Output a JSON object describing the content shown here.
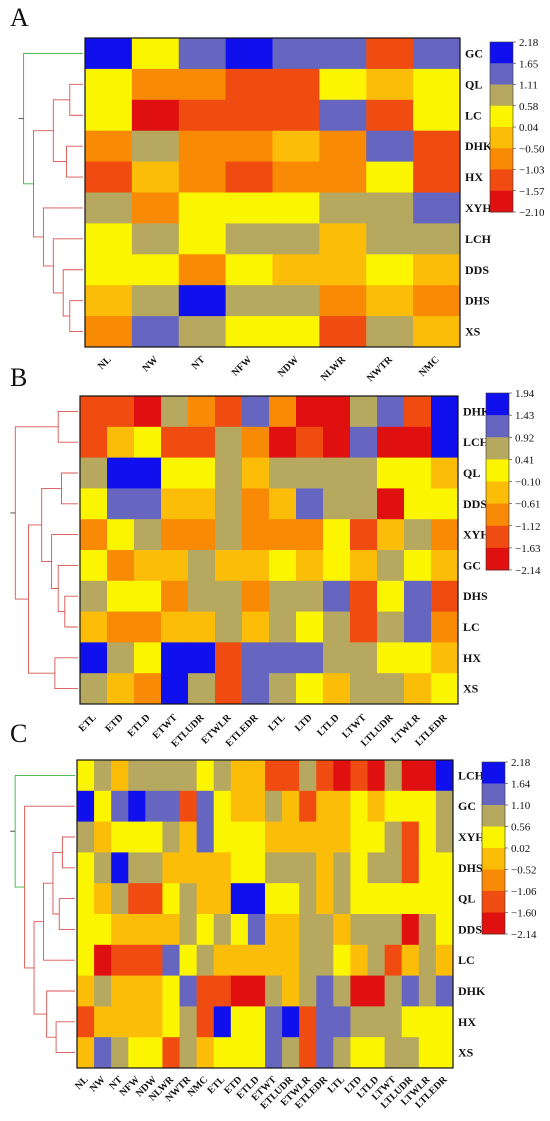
{
  "colorscale": [
    "#e01010",
    "#f04b10",
    "#f98a06",
    "#fbbd08",
    "#fbf500",
    "#b6a95f",
    "#6666c0",
    "#1010ee"
  ],
  "chart_data": [
    {
      "type": "heatmap",
      "panel_label": "A",
      "rows": [
        "GC",
        "QL",
        "LC",
        "DHK",
        "HX",
        "XYH",
        "LCH",
        "DDS",
        "DHS",
        "XS"
      ],
      "columns": [
        "NL",
        "NW",
        "NT",
        "NFW",
        "NDW",
        "NLWR",
        "NWTR",
        "NMC"
      ],
      "colorbar_ticks": [
        "2.18",
        "1.65",
        "1.11",
        "0.58",
        "0.04",
        "−0.50",
        "−1.03",
        "−1.57",
        "−2.10"
      ],
      "value_range": [
        -2.1,
        2.18
      ],
      "values": [
        [
          2.0,
          0.1,
          1.3,
          2.0,
          1.3,
          1.3,
          -1.2,
          1.3
        ],
        [
          0.1,
          -0.8,
          -0.8,
          -1.5,
          -1.5,
          0.4,
          -0.1,
          0.4
        ],
        [
          0.1,
          -2.0,
          -1.3,
          -1.5,
          -1.5,
          1.3,
          -1.4,
          0.4
        ],
        [
          -0.6,
          0.8,
          -0.8,
          -0.8,
          -0.2,
          -1.0,
          1.3,
          -1.3
        ],
        [
          -1.3,
          -0.2,
          -0.8,
          -1.3,
          -0.8,
          -1.0,
          0.4,
          -1.3
        ],
        [
          0.8,
          -0.6,
          0.4,
          0.4,
          0.4,
          0.8,
          0.8,
          1.3
        ],
        [
          0.4,
          0.8,
          0.1,
          0.8,
          0.8,
          -0.2,
          0.8,
          0.8
        ],
        [
          0.4,
          0.4,
          -0.8,
          0.1,
          -0.2,
          -0.2,
          0.4,
          -0.2
        ],
        [
          -0.2,
          0.8,
          2.0,
          0.8,
          0.8,
          -0.6,
          -0.2,
          -0.6
        ],
        [
          -0.8,
          1.3,
          0.8,
          0.4,
          0.4,
          -1.3,
          0.8,
          -0.2
        ]
      ],
      "dendrogram_order": [
        0,
        1,
        2,
        3,
        4,
        5,
        6,
        7,
        8,
        9
      ],
      "dendrogram": [
        [
          1,
          2
        ],
        [
          3,
          4
        ],
        [
          10,
          11
        ],
        [
          8,
          9
        ],
        [
          7,
          13
        ],
        [
          6,
          14
        ],
        [
          5,
          15
        ],
        [
          12,
          16
        ],
        [
          0,
          17
        ]
      ],
      "dendrogram_heights": [
        0.2,
        0.25,
        0.45,
        0.2,
        0.3,
        0.45,
        0.6,
        0.75,
        0.9
      ],
      "dendrogram_green_from": 8
    },
    {
      "type": "heatmap",
      "panel_label": "B",
      "rows": [
        "DHK",
        "LCH",
        "QL",
        "DDS",
        "XYH",
        "GC",
        "DHS",
        "LC",
        "HX",
        "XS"
      ],
      "columns": [
        "ETL",
        "ETD",
        "ETLD",
        "ETWT",
        "ETLUDR",
        "ETWLR",
        "ETLEDR",
        "LTL",
        "LTD",
        "LTLD",
        "LTWT",
        "LTLUDR",
        "LTWLR",
        "LTLEDR"
      ],
      "colorbar_ticks": [
        "1.94",
        "1.43",
        "0.92",
        "0.41",
        "−0.10",
        "−0.61",
        "−1.12",
        "−1.63",
        "−2.14"
      ],
      "value_range": [
        -2.14,
        1.94
      ],
      "values": [
        [
          -1.3,
          -1.3,
          -1.9,
          0.6,
          -0.8,
          -1.3,
          1.0,
          -0.8,
          -1.9,
          -1.9,
          0.6,
          1.0,
          -1.3,
          1.9
        ],
        [
          -1.3,
          -0.2,
          0.2,
          -1.3,
          -1.3,
          0.6,
          -0.8,
          -1.9,
          -1.3,
          -1.9,
          1.0,
          -1.9,
          -1.9,
          1.9
        ],
        [
          0.6,
          1.9,
          1.9,
          0.2,
          0.2,
          0.6,
          -0.2,
          0.6,
          0.6,
          0.6,
          0.6,
          0.2,
          0.2,
          -0.2
        ],
        [
          0.2,
          1.0,
          1.0,
          -0.2,
          -0.2,
          0.6,
          -0.8,
          -0.2,
          1.0,
          0.6,
          0.6,
          -1.9,
          0.2,
          0.2
        ],
        [
          -0.8,
          0.2,
          0.6,
          -0.8,
          -0.8,
          0.6,
          -0.8,
          -0.8,
          -0.8,
          0.2,
          -1.3,
          -0.2,
          0.6,
          -0.8
        ],
        [
          0.2,
          -0.8,
          -0.2,
          -0.2,
          0.6,
          -0.2,
          -0.2,
          0.2,
          -0.2,
          0.2,
          -0.2,
          0.6,
          0.2,
          -0.2
        ],
        [
          0.6,
          0.2,
          0.2,
          -0.8,
          0.6,
          0.6,
          -0.8,
          0.6,
          0.6,
          1.0,
          -1.3,
          0.2,
          1.0,
          -1.3
        ],
        [
          -0.2,
          -0.8,
          -0.8,
          -0.2,
          -0.2,
          0.6,
          -0.2,
          0.6,
          0.2,
          0.6,
          -1.3,
          0.6,
          1.0,
          -0.8
        ],
        [
          1.9,
          0.6,
          0.2,
          1.9,
          1.9,
          -1.3,
          1.0,
          1.0,
          1.0,
          0.6,
          0.6,
          0.2,
          0.2,
          -0.2
        ],
        [
          0.6,
          -0.2,
          -0.8,
          1.9,
          0.6,
          -1.3,
          1.0,
          0.6,
          0.2,
          -0.2,
          0.6,
          0.6,
          -0.2,
          0.2
        ]
      ],
      "dendrogram_order": [
        0,
        1,
        2,
        3,
        4,
        5,
        6,
        7,
        8,
        9
      ],
      "dendrogram": [
        [
          0,
          1
        ],
        [
          2,
          3
        ],
        [
          6,
          7
        ],
        [
          5,
          12
        ],
        [
          4,
          13
        ],
        [
          11,
          14
        ],
        [
          8,
          9
        ],
        [
          15,
          16
        ],
        [
          10,
          17
        ]
      ],
      "dendrogram_heights": [
        0.3,
        0.25,
        0.2,
        0.3,
        0.4,
        0.55,
        0.35,
        0.75,
        0.95
      ],
      "dendrogram_green_from": 9
    },
    {
      "type": "heatmap",
      "panel_label": "C",
      "rows": [
        "LCH",
        "GC",
        "XYH",
        "DHS",
        "QL",
        "DDS",
        "LC",
        "DHK",
        "HX",
        "XS"
      ],
      "columns": [
        "NL",
        "NW",
        "NT",
        "NFW",
        "NDW",
        "NLWR",
        "NWTR",
        "NMC",
        "ETL",
        "ETD",
        "ETLD",
        "ETWT",
        "ETLUDR",
        "ETWLR",
        "ETLEDR",
        "LTL",
        "LTD",
        "LTLD",
        "LTWT",
        "LTLUDR",
        "LTWLR",
        "LTLEDR"
      ],
      "colorbar_ticks": [
        "2.18",
        "1.64",
        "1.10",
        "0.56",
        "0.02",
        "−0.52",
        "−1.06",
        "−1.60",
        "−2.14"
      ],
      "value_range": [
        -2.14,
        2.18
      ],
      "values": [
        [
          0.3,
          0.8,
          0.0,
          0.8,
          0.8,
          0.8,
          0.8,
          0.3,
          0.8,
          -0.5,
          -0.5,
          -1.3,
          -1.3,
          0.8,
          -1.3,
          -1.9,
          -1.3,
          -1.9,
          0.8,
          -1.9,
          -1.9,
          2.0
        ],
        [
          2.0,
          0.3,
          1.4,
          2.0,
          1.4,
          1.4,
          -1.3,
          1.4,
          0.3,
          -0.5,
          -0.5,
          0.8,
          0.0,
          -1.3,
          0.0,
          0.0,
          0.3,
          0.0,
          0.3,
          0.3,
          0.3,
          0.8
        ],
        [
          0.8,
          -0.5,
          0.3,
          0.3,
          0.3,
          0.8,
          -0.5,
          1.4,
          0.3,
          0.3,
          0.3,
          -0.5,
          -0.5,
          -0.5,
          -0.5,
          -0.5,
          0.3,
          0.3,
          0.8,
          -1.3,
          0.3,
          0.8
        ],
        [
          0.3,
          0.8,
          2.0,
          0.8,
          0.8,
          -0.5,
          -0.5,
          -0.5,
          -0.5,
          0.3,
          0.3,
          0.8,
          0.8,
          0.8,
          -0.5,
          0.8,
          0.3,
          0.8,
          0.8,
          -1.3,
          0.3,
          0.3
        ],
        [
          0.3,
          -0.5,
          0.8,
          -1.3,
          -1.3,
          0.3,
          0.8,
          -0.5,
          0.0,
          2.0,
          2.0,
          0.3,
          0.3,
          0.8,
          0.0,
          0.8,
          0.3,
          0.3,
          0.3,
          0.3,
          0.3,
          0.3
        ],
        [
          0.3,
          0.3,
          0.0,
          0.0,
          0.0,
          0.0,
          0.8,
          0.3,
          0.8,
          0.3,
          1.4,
          0.0,
          0.0,
          0.8,
          0.8,
          0.0,
          0.8,
          0.8,
          0.8,
          -1.9,
          0.8,
          0.3
        ],
        [
          0.3,
          -1.9,
          -1.3,
          -1.3,
          -1.3,
          1.4,
          0.3,
          0.8,
          -0.5,
          -0.5,
          -0.5,
          0.0,
          0.0,
          0.8,
          0.8,
          0.3,
          -0.5,
          0.8,
          -1.3,
          0.0,
          0.8,
          -0.5
        ],
        [
          -0.5,
          0.8,
          -0.5,
          -0.5,
          -0.5,
          0.3,
          1.4,
          -1.3,
          -1.3,
          -1.9,
          -1.9,
          0.8,
          -0.5,
          0.8,
          1.4,
          0.8,
          -1.9,
          -1.9,
          0.8,
          1.4,
          0.8,
          1.4
        ],
        [
          -1.3,
          0.0,
          0.0,
          -0.5,
          -0.5,
          0.3,
          0.8,
          -1.3,
          2.0,
          0.3,
          0.3,
          1.4,
          2.0,
          -1.3,
          1.4,
          1.4,
          0.8,
          0.8,
          0.8,
          0.3,
          0.3,
          0.3
        ],
        [
          -0.5,
          1.4,
          0.8,
          0.3,
          0.3,
          -1.3,
          0.8,
          0.0,
          0.3,
          0.3,
          0.3,
          1.4,
          0.8,
          -1.3,
          1.4,
          0.8,
          0.3,
          0.3,
          0.8,
          0.8,
          0.3,
          0.3
        ]
      ],
      "dendrogram_order": [
        0,
        1,
        2,
        3,
        4,
        5,
        6,
        7,
        8,
        9
      ],
      "dendrogram": [
        [
          2,
          3
        ],
        [
          4,
          5
        ],
        [
          10,
          11
        ],
        [
          6,
          12
        ],
        [
          8,
          9
        ],
        [
          7,
          14
        ],
        [
          13,
          15
        ],
        [
          1,
          16
        ],
        [
          0,
          17
        ]
      ],
      "dendrogram_heights": [
        0.2,
        0.25,
        0.35,
        0.5,
        0.3,
        0.45,
        0.65,
        0.8,
        0.95
      ],
      "dendrogram_green_from": 8
    }
  ]
}
